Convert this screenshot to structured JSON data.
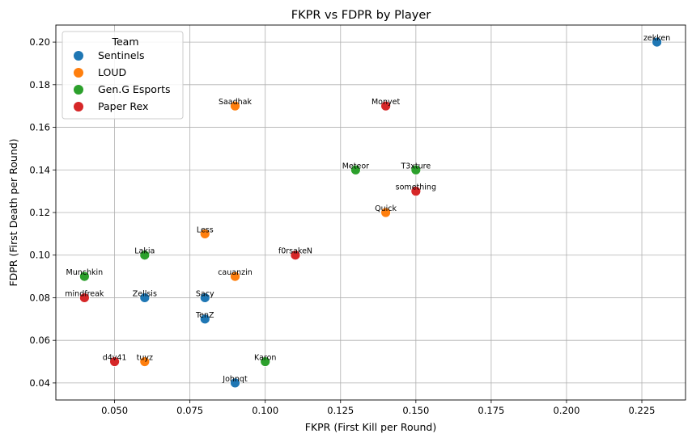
{
  "chart_data": {
    "type": "scatter",
    "title": "FKPR vs FDPR by Player",
    "xlabel": "FKPR (First Kill per Round)",
    "ylabel": "FDPR (First Death per Round)",
    "xlim": [
      0.0305,
      0.2395
    ],
    "ylim": [
      0.032,
      0.208
    ],
    "xticks": [
      "0.050",
      "0.075",
      "0.100",
      "0.125",
      "0.150",
      "0.175",
      "0.200",
      "0.225"
    ],
    "xtick_values": [
      0.05,
      0.075,
      0.1,
      0.125,
      0.15,
      0.175,
      0.2,
      0.225
    ],
    "yticks": [
      "0.04",
      "0.06",
      "0.08",
      "0.10",
      "0.12",
      "0.14",
      "0.16",
      "0.18",
      "0.20"
    ],
    "ytick_values": [
      0.04,
      0.06,
      0.08,
      0.1,
      0.12,
      0.14,
      0.16,
      0.18,
      0.2
    ],
    "grid": true,
    "legend": {
      "title": "Team",
      "placement": "top-left",
      "entries": [
        "Sentinels",
        "LOUD",
        "Gen.G Esports",
        "Paper Rex"
      ]
    },
    "series": [
      {
        "name": "Sentinels",
        "color": "#1f77b4",
        "points": [
          {
            "label": "zekken",
            "x": 0.23,
            "y": 0.2
          },
          {
            "label": "Zellsis",
            "x": 0.06,
            "y": 0.08
          },
          {
            "label": "Sacy",
            "x": 0.08,
            "y": 0.08
          },
          {
            "label": "TenZ",
            "x": 0.08,
            "y": 0.07
          },
          {
            "label": "Johnqt",
            "x": 0.09,
            "y": 0.04
          }
        ]
      },
      {
        "name": "LOUD",
        "color": "#ff7f0e",
        "points": [
          {
            "label": "Saadhak",
            "x": 0.09,
            "y": 0.17
          },
          {
            "label": "Quick",
            "x": 0.14,
            "y": 0.12
          },
          {
            "label": "Less",
            "x": 0.08,
            "y": 0.11
          },
          {
            "label": "cauanzin",
            "x": 0.09,
            "y": 0.09
          },
          {
            "label": "tuyz",
            "x": 0.06,
            "y": 0.05
          }
        ]
      },
      {
        "name": "Gen.G Esports",
        "color": "#2ca02c",
        "points": [
          {
            "label": "Meteor",
            "x": 0.13,
            "y": 0.14
          },
          {
            "label": "T3xture",
            "x": 0.15,
            "y": 0.14
          },
          {
            "label": "Lakia",
            "x": 0.06,
            "y": 0.1
          },
          {
            "label": "Munchkin",
            "x": 0.04,
            "y": 0.09
          },
          {
            "label": "Karon",
            "x": 0.1,
            "y": 0.05
          }
        ]
      },
      {
        "name": "Paper Rex",
        "color": "#d62728",
        "points": [
          {
            "label": "Monyet",
            "x": 0.14,
            "y": 0.17
          },
          {
            "label": "something",
            "x": 0.15,
            "y": 0.13
          },
          {
            "label": "f0rsakeN",
            "x": 0.11,
            "y": 0.1
          },
          {
            "label": "mindfreak",
            "x": 0.04,
            "y": 0.08
          },
          {
            "label": "d4v41",
            "x": 0.05,
            "y": 0.05
          }
        ]
      }
    ]
  }
}
